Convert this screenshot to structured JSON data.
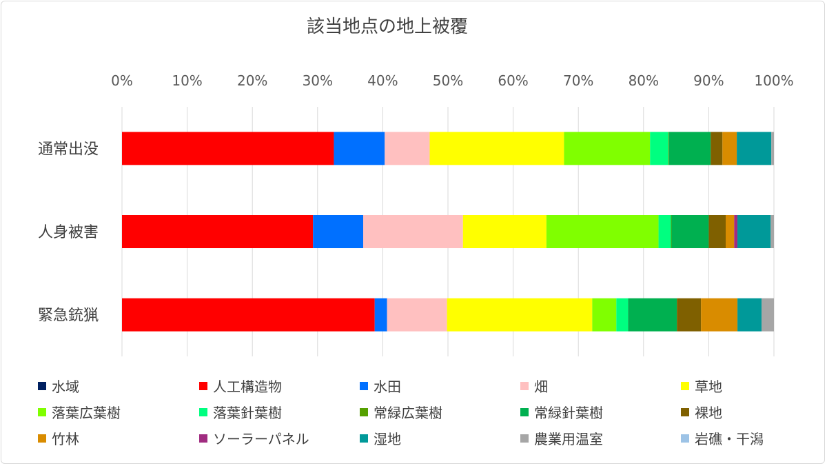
{
  "chart_data": {
    "type": "bar",
    "orientation": "horizontal",
    "stacked": "percent",
    "title": "該当地点の地上被覆",
    "xlabel": "",
    "ylabel": "",
    "xlim": [
      0,
      100
    ],
    "x_ticks": [
      "0%",
      "10%",
      "20%",
      "30%",
      "40%",
      "50%",
      "60%",
      "70%",
      "80%",
      "90%",
      "100%"
    ],
    "grid": "vertical",
    "legend_position": "bottom",
    "categories": [
      "通常出没",
      "人身被害",
      "緊急銃猟"
    ],
    "series": [
      {
        "name": "水域",
        "color": "#002060",
        "values": [
          0,
          0,
          0
        ]
      },
      {
        "name": "人工構造物",
        "color": "#ff0000",
        "values": [
          32.5,
          29.3,
          38.8
        ]
      },
      {
        "name": "水田",
        "color": "#0070ff",
        "values": [
          7.8,
          7.7,
          1.9
        ]
      },
      {
        "name": "畑",
        "color": "#ffc0c0",
        "values": [
          6.9,
          15.3,
          9.2
        ]
      },
      {
        "name": "草地",
        "color": "#ffff00",
        "values": [
          20.6,
          12.8,
          22.3
        ]
      },
      {
        "name": "落葉広葉樹",
        "color": "#80ff00",
        "values": [
          13.2,
          17.2,
          3.7
        ]
      },
      {
        "name": "落葉針葉樹",
        "color": "#00ff80",
        "values": [
          2.8,
          1.9,
          1.8
        ]
      },
      {
        "name": "常緑広葉樹",
        "color": "#55a000",
        "values": [
          0.1,
          0.1,
          0.0
        ]
      },
      {
        "name": "常緑針葉樹",
        "color": "#00b050",
        "values": [
          6.4,
          5.7,
          7.5
        ]
      },
      {
        "name": "裸地",
        "color": "#7f6000",
        "values": [
          1.8,
          2.6,
          3.7
        ]
      },
      {
        "name": "竹林",
        "color": "#d98c00",
        "values": [
          2.2,
          1.3,
          5.6
        ]
      },
      {
        "name": "ソーラーパネル",
        "color": "#a02c80",
        "values": [
          0.0,
          0.5,
          0.0
        ]
      },
      {
        "name": "湿地",
        "color": "#009999",
        "values": [
          5.3,
          5.1,
          3.7
        ]
      },
      {
        "name": "農業用温室",
        "color": "#a6a6a6",
        "values": [
          0.4,
          0.5,
          1.9
        ]
      },
      {
        "name": "岩礁・干潟",
        "color": "#9dc3e6",
        "values": [
          0,
          0,
          0
        ]
      }
    ]
  }
}
